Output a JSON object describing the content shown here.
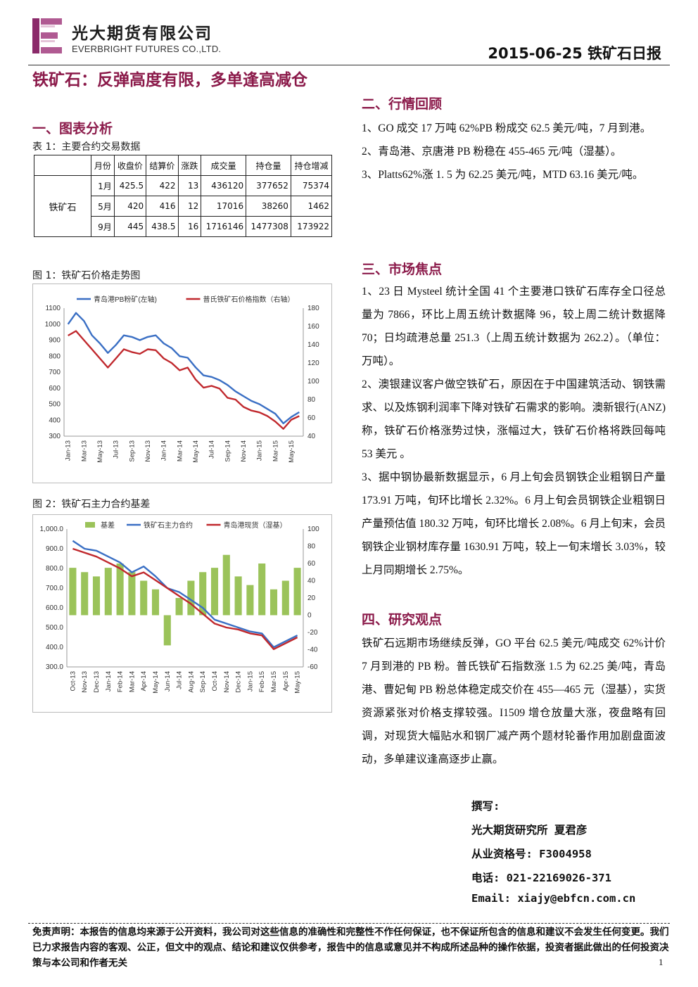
{
  "header": {
    "company_cn": "光大期货有限公司",
    "company_en": "EVERBRIGHT FUTURES CO.,LTD.",
    "doc_date_title": "2015-06-25 铁矿石日报"
  },
  "title": "铁矿石：反弹高度有限，多单逢高减仓",
  "section1": {
    "heading": "一、图表分析",
    "table_caption": "表 1：主要合约交易数据",
    "table": {
      "columns": [
        "月份",
        "收盘价",
        "结算价",
        "涨跌",
        "成交量",
        "持仓量",
        "持仓增减"
      ],
      "product": "铁矿石",
      "rows": [
        [
          "1月",
          "425.5",
          "422",
          "13",
          "436120",
          "377652",
          "75374"
        ],
        [
          "5月",
          "420",
          "416",
          "12",
          "17016",
          "38260",
          "1462"
        ],
        [
          "9月",
          "445",
          "438.5",
          "16",
          "1716146",
          "1477308",
          "173922"
        ]
      ]
    },
    "fig1_caption": "图 1：铁矿石价格走势图",
    "fig2_caption": "图 2：铁矿石主力合约基差"
  },
  "chart_data": [
    {
      "type": "line",
      "legend_placement": "top",
      "series": [
        {
          "name": "青岛港PB粉矿(左轴)",
          "axis": "left",
          "color": "#3a6fc4",
          "x": [
            "Jan-13",
            "Feb-13",
            "Mar-13",
            "Apr-13",
            "May-13",
            "Jun-13",
            "Jul-13",
            "Aug-13",
            "Sep-13",
            "Oct-13",
            "Nov-13",
            "Dec-13",
            "Jan-14",
            "Feb-14",
            "Mar-14",
            "Apr-14",
            "May-14",
            "Jun-14",
            "Jul-14",
            "Aug-14",
            "Sep-14",
            "Oct-14",
            "Nov-14",
            "Dec-14",
            "Jan-15",
            "Feb-15",
            "Mar-15",
            "Apr-15",
            "May-15",
            "Jun-15"
          ],
          "values": [
            1000,
            1070,
            1020,
            930,
            880,
            820,
            870,
            930,
            920,
            900,
            920,
            930,
            880,
            850,
            800,
            790,
            730,
            680,
            670,
            650,
            620,
            580,
            550,
            520,
            500,
            470,
            440,
            380,
            420,
            450
          ]
        },
        {
          "name": "普氏铁矿石价格指数（右轴）",
          "axis": "right",
          "color": "#c0282d",
          "x": [
            "Jan-13",
            "Feb-13",
            "Mar-13",
            "Apr-13",
            "May-13",
            "Jun-13",
            "Jul-13",
            "Aug-13",
            "Sep-13",
            "Oct-13",
            "Nov-13",
            "Dec-13",
            "Jan-14",
            "Feb-14",
            "Mar-14",
            "Apr-14",
            "May-14",
            "Jun-14",
            "Jul-14",
            "Aug-14",
            "Sep-14",
            "Oct-14",
            "Nov-14",
            "Dec-14",
            "Jan-15",
            "Feb-15",
            "Mar-15",
            "Apr-15",
            "May-15",
            "Jun-15"
          ],
          "values": [
            150,
            155,
            145,
            135,
            125,
            115,
            125,
            135,
            132,
            130,
            135,
            134,
            125,
            120,
            112,
            115,
            102,
            93,
            95,
            92,
            82,
            80,
            72,
            68,
            66,
            62,
            56,
            48,
            58,
            62
          ]
        }
      ],
      "left_ylim": [
        300,
        1100
      ],
      "left_ticks": [
        300,
        400,
        500,
        600,
        700,
        800,
        900,
        1000,
        1100
      ],
      "right_ylim": [
        40,
        180
      ],
      "right_ticks": [
        40,
        60,
        80,
        100,
        120,
        140,
        160,
        180
      ],
      "x_ticks": [
        "Jan-13",
        "Mar-13",
        "May-13",
        "Jul-13",
        "Sep-13",
        "Nov-13",
        "Jan-14",
        "Mar-14",
        "May-14",
        "Jul-14",
        "Sep-14",
        "Nov-14",
        "Jan-15",
        "Mar-15",
        "May-15"
      ]
    },
    {
      "type": "bar",
      "legend_placement": "top",
      "series": [
        {
          "name": "基差",
          "axis": "right",
          "kind": "bar",
          "color": "#9bc35a",
          "x": [
            "Oct-13",
            "Nov-13",
            "Dec-13",
            "Jan-14",
            "Feb-14",
            "Mar-14",
            "Apr-14",
            "May-14",
            "Jun-14",
            "Jul-14",
            "Aug-14",
            "Sep-14",
            "Oct-14",
            "Nov-14",
            "Dec-14",
            "Jan-15",
            "Feb-15",
            "Mar-15",
            "Apr-15",
            "May-15"
          ],
          "values": [
            55,
            50,
            45,
            55,
            60,
            50,
            40,
            30,
            -35,
            20,
            40,
            50,
            55,
            70,
            45,
            35,
            60,
            30,
            40,
            55
          ]
        },
        {
          "name": "铁矿石主力合约",
          "axis": "left",
          "kind": "line",
          "color": "#3a6fc4",
          "x": [
            "Oct-13",
            "Nov-13",
            "Dec-13",
            "Jan-14",
            "Feb-14",
            "Mar-14",
            "Apr-14",
            "May-14",
            "Jun-14",
            "Jul-14",
            "Aug-14",
            "Sep-14",
            "Oct-14",
            "Nov-14",
            "Dec-14",
            "Jan-15",
            "Feb-15",
            "Mar-15",
            "Apr-15",
            "May-15"
          ],
          "values": [
            940,
            900,
            890,
            860,
            830,
            780,
            810,
            760,
            700,
            680,
            640,
            600,
            540,
            520,
            500,
            480,
            470,
            400,
            430,
            460
          ]
        },
        {
          "name": "青岛港现货（湿基）",
          "axis": "left",
          "kind": "line",
          "color": "#c0282d",
          "x": [
            "Oct-13",
            "Nov-13",
            "Dec-13",
            "Jan-14",
            "Feb-14",
            "Mar-14",
            "Apr-14",
            "May-14",
            "Jun-14",
            "Jul-14",
            "Aug-14",
            "Sep-14",
            "Oct-14",
            "Nov-14",
            "Dec-14",
            "Jan-15",
            "Feb-15",
            "Mar-15",
            "Apr-15",
            "May-15"
          ],
          "values": [
            900,
            880,
            860,
            830,
            800,
            760,
            780,
            740,
            700,
            660,
            620,
            570,
            520,
            500,
            490,
            470,
            460,
            390,
            420,
            450
          ]
        }
      ],
      "left_ylim": [
        300,
        1000
      ],
      "left_ticks": [
        "300.0",
        "400.0",
        "500.0",
        "600.0",
        "700.0",
        "800.0",
        "900.0",
        "1,000.0"
      ],
      "right_ylim": [
        -60,
        100
      ],
      "right_ticks": [
        -60,
        -40,
        -20,
        0,
        20,
        40,
        60,
        80,
        100
      ],
      "x_ticks": [
        "Oct-13",
        "Nov-13",
        "Dec-13",
        "Jan-14",
        "Feb-14",
        "Mar-14",
        "Apr-14",
        "May-14",
        "Jun-14",
        "Jul-14",
        "Aug-14",
        "Sep-14",
        "Oct-14",
        "Nov-14",
        "Dec-14",
        "Jan-15",
        "Feb-15",
        "Mar-15",
        "Apr-15",
        "May-15"
      ]
    }
  ],
  "section2": {
    "heading": "二、行情回顾",
    "paras": [
      "1、GO 成交 17 万吨 62%PB 粉成交 62.5 美元/吨，7 月到港。",
      "2、青岛港、京唐港 PB 粉稳在 455-465 元/吨（湿基）。",
      "3、Platts62%涨 1. 5 为 62.25 美元/吨，MTD 63.16 美元/吨。"
    ]
  },
  "section3": {
    "heading": "三、市场焦点",
    "paras": [
      "1、23 日 Mysteel 统计全国 41 个主要港口铁矿石库存全口径总量为 7866，环比上周五统计数据降 96，较上周二统计数据降 70；日均疏港总量 251.3（上周五统计数据为 262.2）。（单位：万吨）。",
      "2、澳银建议客户做空铁矿石，原因在于中国建筑活动、钢铁需求、以及炼钢利润率下降对铁矿石需求的影响。澳新银行(ANZ)称，铁矿石价格涨势过快，涨幅过大，铁矿石价格将跌回每吨 53 美元 。",
      "3、据中钢协最新数据显示，6 月上旬会员钢铁企业粗钢日产量 173.91 万吨，旬环比增长 2.32%。6 月上旬会员钢铁企业粗钢日产量预估值 180.32 万吨，旬环比增长 2.08%。6 月上旬末，会员钢铁企业钢材库存量 1630.91 万吨，较上一旬末增长 3.03%，较上月同期增长 2.75%。"
    ]
  },
  "section4": {
    "heading": "四、研究观点",
    "paras": [
      "铁矿石远期市场继续反弹，GO 平台 62.5 美元/吨成交 62%计价 7 月到港的 PB 粉。普氏铁矿石指数涨 1.5 为 62.25 美/吨，青岛港、曹妃甸 PB 粉总体稳定成交价在 455—465 元（湿基），实货资源紧张对价格支撑较强。I1509 增仓放量大涨，夜盘略有回调，对现货大幅贴水和钢厂减产两个题材轮番作用加剧盘面波动，多单建议逢高逐步止赢。"
    ]
  },
  "author": {
    "label": "撰写:",
    "org_name": "光大期货研究所 夏君彦",
    "license": "从业资格号: F3004958",
    "phone": "电话: 021-22169026-371",
    "email": "Email: xiajy@ebfcn.com.cn"
  },
  "disclaimer": "免责声明：本报告的信息均来源于公开资料，我公司对这些信息的准确性和完整性不作任何保证，也不保证所包含的信息和建议不会发生任何变更。我们已力求报告内容的客观、公正，但文中的观点、结论和建议仅供参考，报告中的信息或意见并不构成所述品种的操作依据，投资者据此做出的任何投资决策与本公司和作者无关",
  "page_number": "1",
  "colors": {
    "accent": "#8b1a4a",
    "logo": "#8b2a6a",
    "pb_line": "#3a6fc4",
    "platts_line": "#c0282d",
    "basis_bar": "#9bc35a"
  }
}
